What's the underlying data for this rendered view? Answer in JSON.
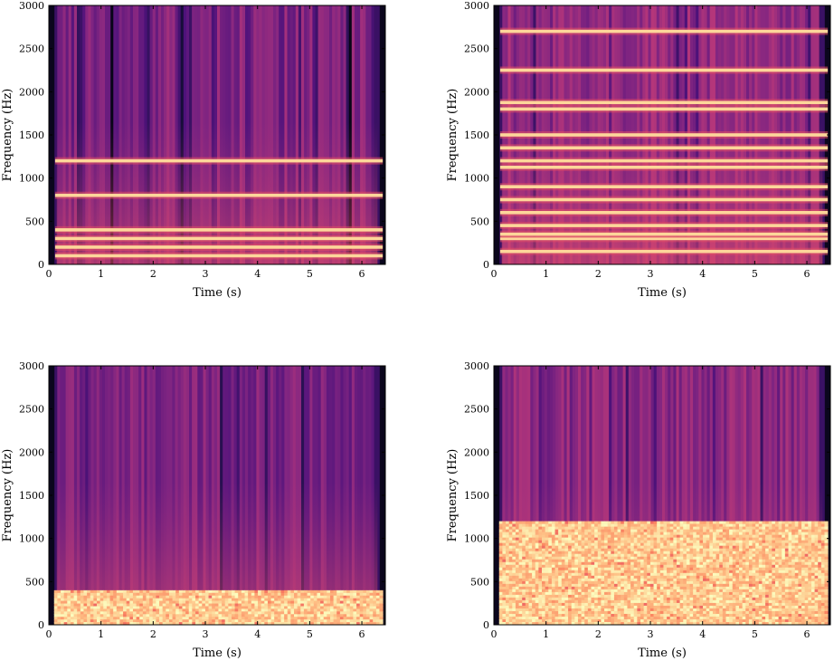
{
  "figure": {
    "type": "spectrogram-grid",
    "rows": 2,
    "cols": 2
  },
  "chart_data": [
    {
      "type": "heatmap",
      "panel": "top-left",
      "xlabel": "Time (s)",
      "ylabel": "Frequency (Hz)",
      "xlim": [
        0,
        6.45
      ],
      "ylim": [
        0,
        3000
      ],
      "xticks": [
        0,
        1,
        2,
        3,
        4,
        5,
        6
      ],
      "yticks": [
        0,
        500,
        1000,
        1500,
        2000,
        2500,
        3000
      ],
      "colormap": "magma",
      "harmonic_lines_hz": [
        100,
        200,
        300,
        400,
        800,
        1200
      ],
      "noise_band_max_hz": 0,
      "periodic_dips_s": 0.64,
      "background_level": 0.38
    },
    {
      "type": "heatmap",
      "panel": "top-right",
      "xlabel": "Time (s)",
      "ylabel": "Frequency (Hz)",
      "xlim": [
        0,
        6.45
      ],
      "ylim": [
        0,
        3000
      ],
      "xticks": [
        0,
        1,
        2,
        3,
        4,
        5,
        6
      ],
      "yticks": [
        0,
        500,
        1000,
        1500,
        2000,
        2500,
        3000
      ],
      "colormap": "magma",
      "harmonic_lines_hz": [
        150,
        300,
        350,
        450,
        600,
        750,
        900,
        1125,
        1200,
        1350,
        1500,
        1800,
        1875,
        2250,
        2700
      ],
      "noise_band_max_hz": 0,
      "periodic_dips_s": 0,
      "background_level": 0.42
    },
    {
      "type": "heatmap",
      "panel": "bottom-left",
      "xlabel": "Time (s)",
      "ylabel": "Frequency (Hz)",
      "xlim": [
        0,
        6.45
      ],
      "ylim": [
        0,
        3000
      ],
      "xticks": [
        0,
        1,
        2,
        3,
        4,
        5,
        6
      ],
      "yticks": [
        0,
        500,
        1000,
        1500,
        2000,
        2500,
        3000
      ],
      "colormap": "magma",
      "harmonic_lines_hz": [],
      "noise_band_max_hz": 400,
      "periodic_dips_s": 0,
      "background_level": 0.36
    },
    {
      "type": "heatmap",
      "panel": "bottom-right",
      "xlabel": "Time (s)",
      "ylabel": "Frequency (Hz)",
      "xlim": [
        0,
        6.45
      ],
      "ylim": [
        0,
        3000
      ],
      "xticks": [
        0,
        1,
        2,
        3,
        4,
        5,
        6
      ],
      "yticks": [
        0,
        500,
        1000,
        1500,
        2000,
        2500,
        3000
      ],
      "colormap": "magma",
      "harmonic_lines_hz": [],
      "noise_band_max_hz": 1200,
      "periodic_dips_s": 0,
      "background_level": 0.4
    }
  ]
}
